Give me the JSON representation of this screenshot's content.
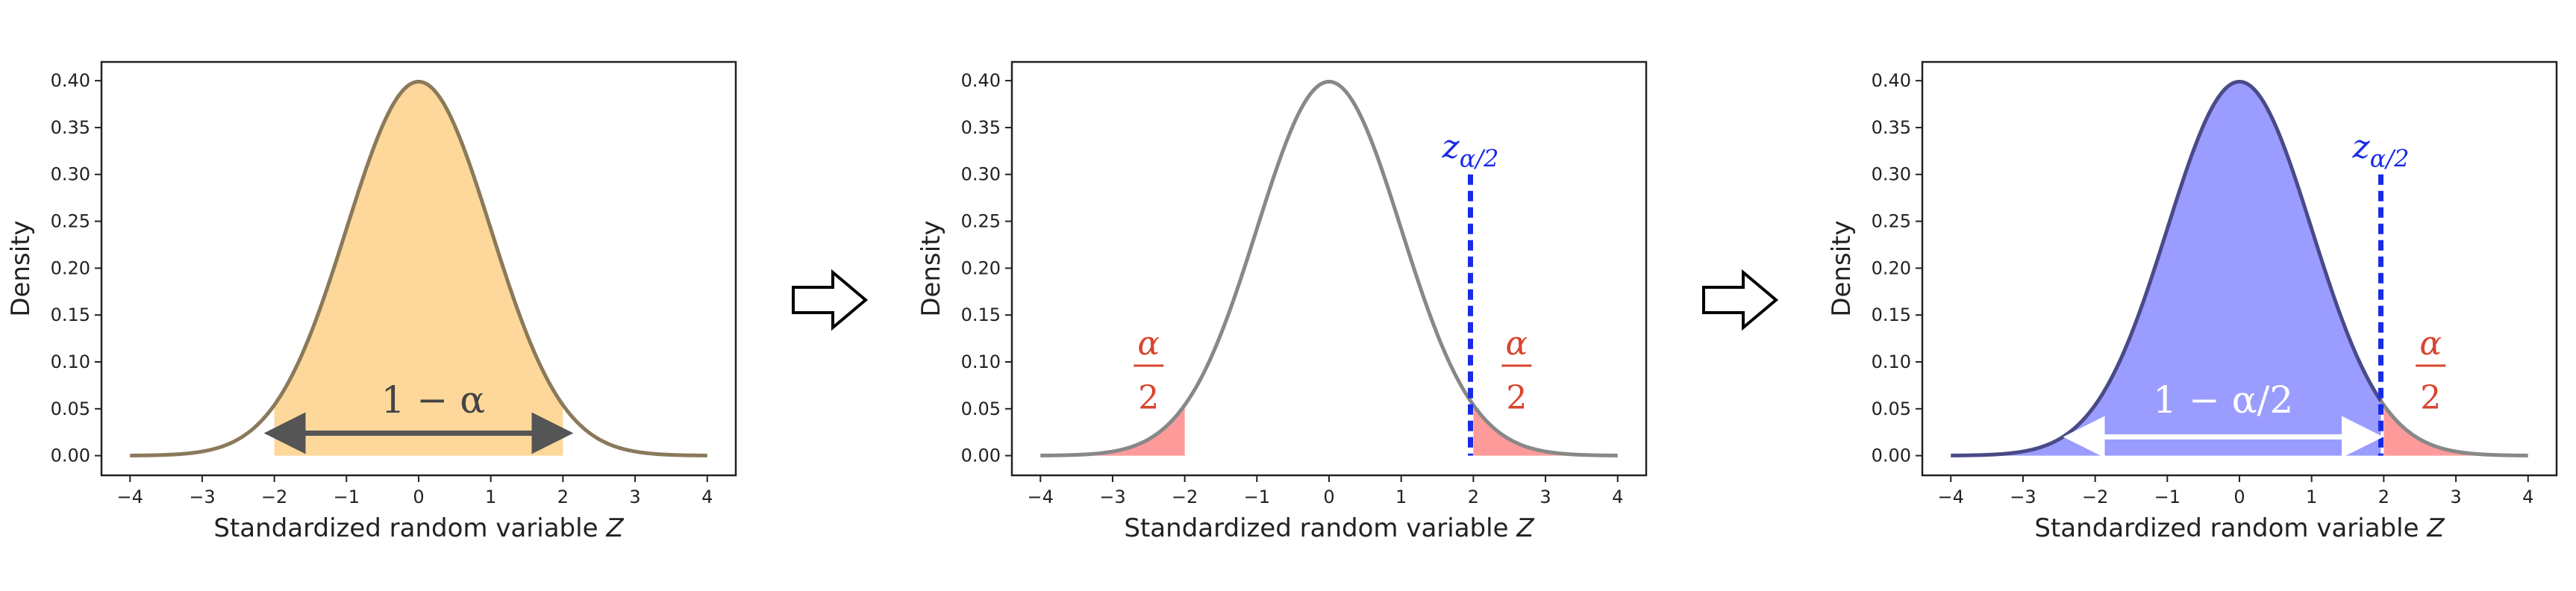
{
  "colors": {
    "curve": "#888888",
    "orange_fill": "#fdd89a",
    "red_fill": "#ff9a9a",
    "red_text": "#d9442e",
    "blue_fill": "#9a9cff",
    "blue_curve": "#4a4a88",
    "blue_line": "#1a2be6",
    "arrow_dark": "#555555",
    "arrow_white": "#ffffff",
    "axis": "#222222"
  },
  "chart_data": [
    {
      "type": "area",
      "distribution": "standard normal density",
      "xlabel_prefix": "Standardized random variable ",
      "xlabel_var": "Z",
      "ylabel": "Density",
      "xlim": [
        -4,
        4
      ],
      "ylim": [
        0,
        0.42
      ],
      "xticks": [
        -4,
        -3,
        -2,
        -1,
        0,
        1,
        2,
        3,
        4
      ],
      "xtick_labels": [
        "−4",
        "−3",
        "−2",
        "−1",
        "0",
        "1",
        "2",
        "3",
        "4"
      ],
      "yticks": [
        0.0,
        0.05,
        0.1,
        0.15,
        0.2,
        0.25,
        0.3,
        0.35,
        0.4
      ],
      "ytick_labels": [
        "0.00",
        "0.05",
        "0.10",
        "0.15",
        "0.20",
        "0.25",
        "0.30",
        "0.35",
        "0.40"
      ],
      "shaded_central": [
        -2,
        2
      ],
      "arrow_range": [
        -2,
        2
      ],
      "annotation": "1 − α"
    },
    {
      "type": "area",
      "distribution": "standard normal density",
      "xlabel_prefix": "Standardized random variable ",
      "xlabel_var": "Z",
      "ylabel": "Density",
      "xlim": [
        -4,
        4
      ],
      "ylim": [
        0,
        0.42
      ],
      "xticks": [
        -4,
        -3,
        -2,
        -1,
        0,
        1,
        2,
        3,
        4
      ],
      "xtick_labels": [
        "−4",
        "−3",
        "−2",
        "−1",
        "0",
        "1",
        "2",
        "3",
        "4"
      ],
      "yticks": [
        0.0,
        0.05,
        0.1,
        0.15,
        0.2,
        0.25,
        0.3,
        0.35,
        0.4
      ],
      "ytick_labels": [
        "0.00",
        "0.05",
        "0.10",
        "0.15",
        "0.20",
        "0.25",
        "0.30",
        "0.35",
        "0.40"
      ],
      "shaded_tails": [
        -2,
        2
      ],
      "critical_value_x": 1.96,
      "critical_line_top": 0.3,
      "critical_label_base": "z",
      "critical_label_sub": "α/2",
      "tail_label_num": "α",
      "tail_label_den": "2"
    },
    {
      "type": "area",
      "distribution": "standard normal density",
      "xlabel_prefix": "Standardized random variable ",
      "xlabel_var": "Z",
      "ylabel": "Density",
      "xlim": [
        -4,
        4
      ],
      "ylim": [
        0,
        0.42
      ],
      "xticks": [
        -4,
        -3,
        -2,
        -1,
        0,
        1,
        2,
        3,
        4
      ],
      "xtick_labels": [
        "−4",
        "−3",
        "−2",
        "−1",
        "0",
        "1",
        "2",
        "3",
        "4"
      ],
      "yticks": [
        0.0,
        0.05,
        0.1,
        0.15,
        0.2,
        0.25,
        0.3,
        0.35,
        0.4
      ],
      "ytick_labels": [
        "0.00",
        "0.05",
        "0.10",
        "0.15",
        "0.20",
        "0.25",
        "0.30",
        "0.35",
        "0.40"
      ],
      "shaded_left_of": 1.96,
      "shaded_right_tail": 2,
      "critical_value_x": 1.96,
      "critical_line_top": 0.3,
      "critical_label_base": "z",
      "critical_label_sub": "α/2",
      "arrow_range": [
        -2.3,
        1.85
      ],
      "annotation": "1 − α/2",
      "tail_label_num": "α",
      "tail_label_den": "2"
    }
  ]
}
